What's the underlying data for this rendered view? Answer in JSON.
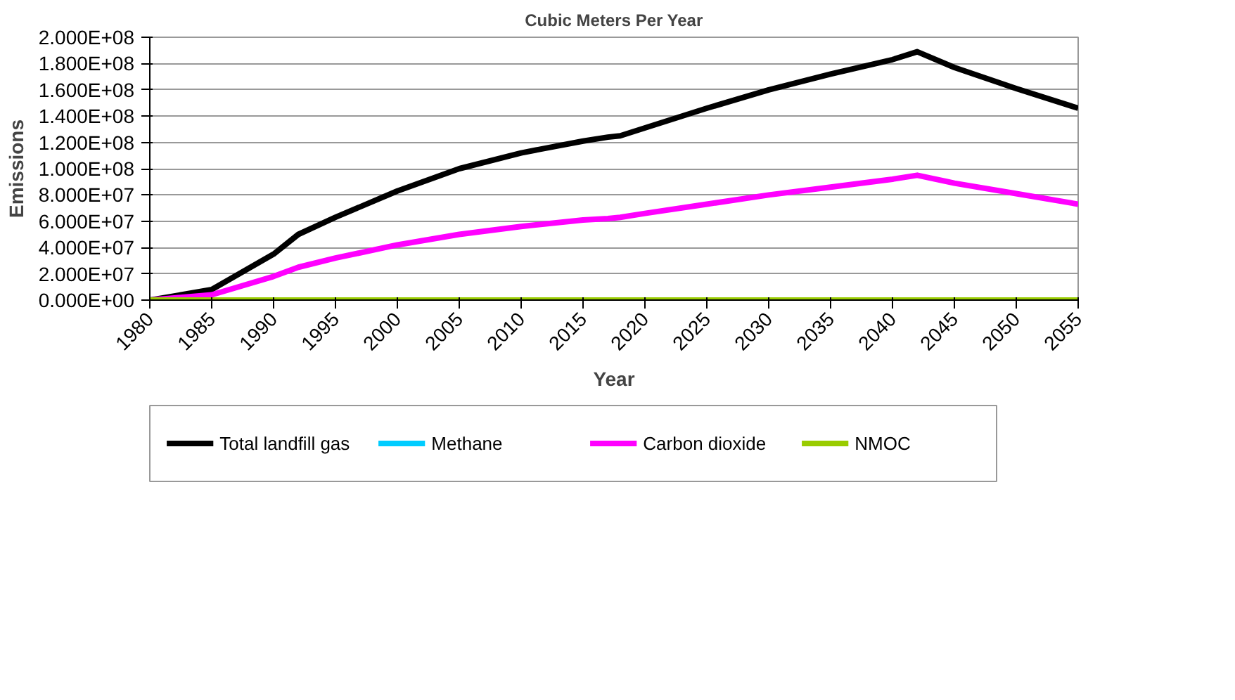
{
  "chart_data": {
    "type": "line",
    "title": "Cubic Meters Per Year",
    "xlabel": "Year",
    "ylabel": "Emissions",
    "x": [
      1980,
      1985,
      1990,
      1992,
      1995,
      2000,
      2005,
      2010,
      2015,
      2017,
      2018,
      2020,
      2025,
      2030,
      2035,
      2040,
      2042,
      2045,
      2050,
      2055
    ],
    "series": [
      {
        "name": "Total landfill gas",
        "color": "#000000",
        "values": [
          0,
          8000000,
          35000000,
          50000000,
          63000000,
          83000000,
          100000000,
          112000000,
          121000000,
          124000000,
          125000000,
          131000000,
          146000000,
          160000000,
          172000000,
          183000000,
          189000000,
          177000000,
          161000000,
          146000000
        ]
      },
      {
        "name": "Methane",
        "color": "#00ccff",
        "values": [
          null,
          null,
          null,
          null,
          null,
          null,
          null,
          null,
          null,
          null,
          null,
          null,
          null,
          null,
          null,
          null,
          null,
          null,
          null,
          null
        ]
      },
      {
        "name": "Carbon dioxide",
        "color": "#ff00ff",
        "values": [
          0,
          4000000,
          18000000,
          25000000,
          32000000,
          42000000,
          50000000,
          56000000,
          61000000,
          62000000,
          63000000,
          66000000,
          73000000,
          80000000,
          86000000,
          92000000,
          95000000,
          89000000,
          81000000,
          73000000
        ]
      },
      {
        "name": "NMOC",
        "color": "#99cc00",
        "values": [
          0,
          0,
          0,
          0,
          0,
          0,
          0,
          0,
          0,
          0,
          0,
          0,
          0,
          0,
          0,
          0,
          0,
          0,
          0,
          0
        ]
      }
    ],
    "xlim": [
      1980,
      2055
    ],
    "xticks": [
      1980,
      1985,
      1990,
      1995,
      2000,
      2005,
      2010,
      2015,
      2020,
      2025,
      2030,
      2035,
      2040,
      2045,
      2050,
      2055
    ],
    "ylim": [
      0,
      200000000
    ],
    "yticks": [
      {
        "value": 0,
        "label": "0.000E+00"
      },
      {
        "value": 20000000,
        "label": "2.000E+07"
      },
      {
        "value": 40000000,
        "label": "4.000E+07"
      },
      {
        "value": 60000000,
        "label": "6.000E+07"
      },
      {
        "value": 80000000,
        "label": "8.000E+07"
      },
      {
        "value": 100000000,
        "label": "1.000E+08"
      },
      {
        "value": 120000000,
        "label": "1.200E+08"
      },
      {
        "value": 140000000,
        "label": "1.400E+08"
      },
      {
        "value": 160000000,
        "label": "1.600E+08"
      },
      {
        "value": 180000000,
        "label": "1.800E+08"
      },
      {
        "value": 200000000,
        "label": "2.000E+08"
      }
    ],
    "grid": "y",
    "legend": "bottom",
    "marker": "none",
    "line_style": "solid"
  }
}
